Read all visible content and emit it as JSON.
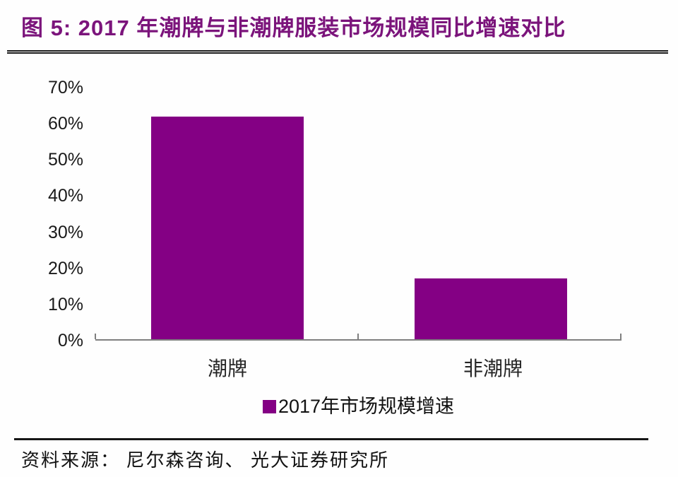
{
  "header": {
    "title": "图 5: 2017 年潮牌与非潮牌服装市场规模同比增速对比",
    "title_color": "#7B147B"
  },
  "chart_data": {
    "type": "bar",
    "title": "图 5: 2017 年潮牌与非潮牌服装市场规模同比增速对比",
    "categories": [
      "潮牌",
      "非潮牌"
    ],
    "values": [
      62,
      17
    ],
    "value_unit": "%",
    "series": [
      {
        "name": "2017年市场规模增速",
        "values": [
          62,
          17
        ]
      }
    ],
    "legend": [
      "2017年市场规模增速"
    ],
    "legend_position": "bottom-center",
    "xlabel": "",
    "ylabel": "",
    "yticks": [
      "0%",
      "10%",
      "20%",
      "30%",
      "40%",
      "50%",
      "60%",
      "70%"
    ],
    "ylim": [
      0,
      70
    ],
    "grid": false,
    "bar_color": "#840084",
    "axis_color": "#7f7f7f"
  },
  "footer": {
    "source": "资料来源： 尼尔森咨询、 光大证券研究所"
  }
}
